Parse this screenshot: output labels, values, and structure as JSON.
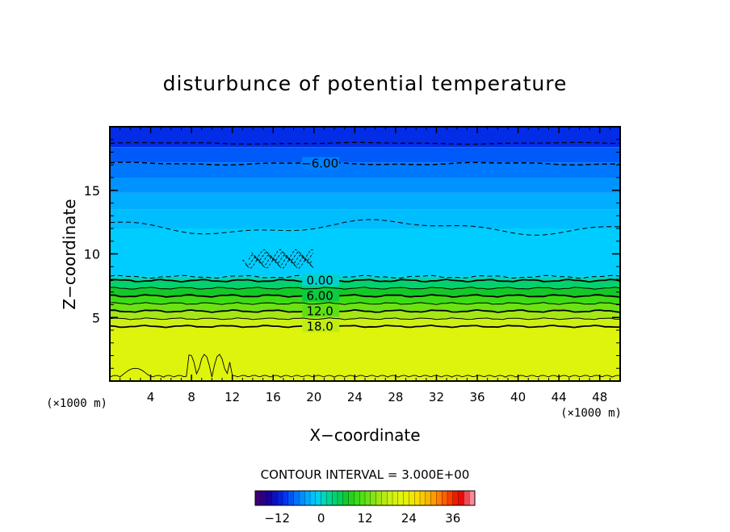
{
  "chart_data": {
    "type": "heatmap",
    "title": "disturbunce of potential temperature",
    "xlabel": "X−coordinate",
    "ylabel": "Z−coordinate",
    "x_unit": "(×1000 m)",
    "y_unit": "(×1000 m)",
    "xlim": [
      0,
      50
    ],
    "ylim": [
      0,
      20
    ],
    "x_ticks": [
      4,
      8,
      12,
      16,
      20,
      24,
      28,
      32,
      36,
      40,
      44,
      48
    ],
    "y_ticks": [
      5,
      10,
      15
    ],
    "contour_interval_label": "CONTOUR INTERVAL = 3.000E+00",
    "contour_labels": [
      {
        "text": "−6.00",
        "x": 19,
        "z": 17.1,
        "value": -6
      },
      {
        "text": "0.00",
        "x": 19,
        "z": 7.9,
        "value": 0
      },
      {
        "text": "6.00",
        "x": 19,
        "z": 6.7,
        "value": 6
      },
      {
        "text": "12.0",
        "x": 19,
        "z": 5.5,
        "value": 12
      },
      {
        "text": "18.0",
        "x": 19,
        "z": 4.3,
        "value": 18
      }
    ],
    "layers": [
      {
        "z0": 18.4,
        "z1": 20,
        "value": -10.5
      },
      {
        "z0": 17.2,
        "z1": 18.4,
        "value": -8
      },
      {
        "z0": 16.0,
        "z1": 17.2,
        "value": -6.5
      },
      {
        "z0": 14.8,
        "z1": 16.0,
        "value": -5
      },
      {
        "z0": 13.5,
        "z1": 14.8,
        "value": -3.5
      },
      {
        "z0": 12.0,
        "z1": 13.5,
        "value": -2.5
      },
      {
        "z0": 8.2,
        "z1": 12.0,
        "value": -1.5
      },
      {
        "z0": 7.9,
        "z1": 8.2,
        "value": 1
      },
      {
        "z0": 7.3,
        "z1": 7.9,
        "value": 4
      },
      {
        "z0": 6.7,
        "z1": 7.3,
        "value": 7
      },
      {
        "z0": 6.1,
        "z1": 6.7,
        "value": 10
      },
      {
        "z0": 5.5,
        "z1": 6.1,
        "value": 13
      },
      {
        "z0": 4.9,
        "z1": 5.5,
        "value": 16
      },
      {
        "z0": 4.3,
        "z1": 4.9,
        "value": 19
      },
      {
        "z0": 0,
        "z1": 4.3,
        "value": 21.5
      }
    ],
    "colorbar": {
      "min": -18,
      "max": 42,
      "ticks": [
        -12,
        0,
        12,
        24,
        36
      ],
      "tick_labels": [
        "−12",
        "0",
        "12",
        "24",
        "36"
      ]
    }
  }
}
